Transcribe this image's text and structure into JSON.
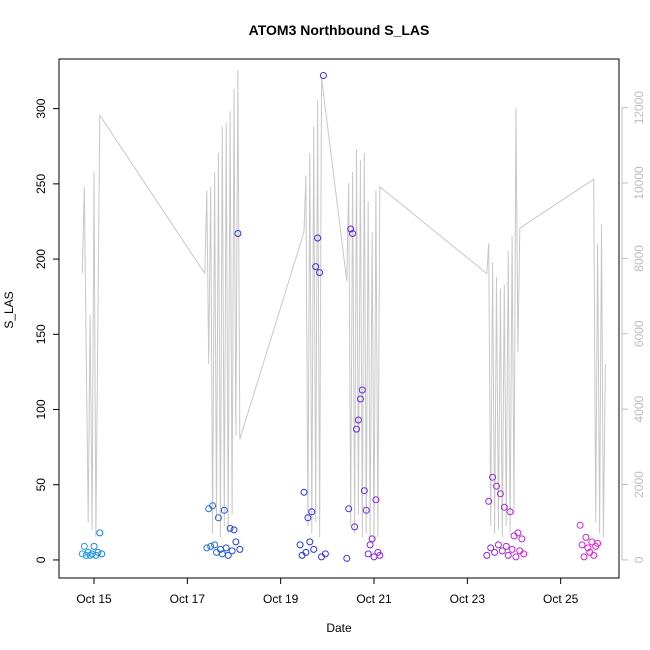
{
  "chart_data": {
    "type": "scatter",
    "title": "ATOM3 Northbound S_LAS",
    "xlabel": "Date",
    "ylabel": "S_LAS",
    "x_ticks": [
      "Oct 15",
      "Oct 17",
      "Oct 19",
      "Oct 21",
      "Oct 23",
      "Oct 25"
    ],
    "y_ticks": [
      "0",
      "50",
      "100",
      "150",
      "200",
      "250",
      "300"
    ],
    "y2_ticks": [
      "0",
      "2000",
      "4000",
      "6000",
      "8000",
      "10000",
      "12000"
    ],
    "xlim": [
      "2013-10-14 06:00",
      "2013-10-26 06:00"
    ],
    "ylim": [
      -12,
      333
    ],
    "y2lim": [
      -480,
      13290
    ],
    "grid": false,
    "legend": "none",
    "colors": {
      "points_start": "#1aa3e8",
      "points_mid": "#2030e0",
      "points_late": "#9020f0",
      "points_end": "#f020d0",
      "line": "#c8c8c8",
      "right_axis": "#bdbdbd"
    },
    "series": [
      {
        "label_axis": "left",
        "style": "points",
        "points": [
          {
            "x": "2013-10-14 18:00",
            "y": 4
          },
          {
            "x": "2013-10-14 19:00",
            "y": 9
          },
          {
            "x": "2013-10-14 20:00",
            "y": 3
          },
          {
            "x": "2013-10-14 21:00",
            "y": 5
          },
          {
            "x": "2013-10-14 22:00",
            "y": 3
          },
          {
            "x": "2013-10-14 23:00",
            "y": 4
          },
          {
            "x": "2013-10-15 00:00",
            "y": 9
          },
          {
            "x": "2013-10-15 01:00",
            "y": 3
          },
          {
            "x": "2013-10-15 02:00",
            "y": 5
          },
          {
            "x": "2013-10-15 03:00",
            "y": 18
          },
          {
            "x": "2013-10-15 04:00",
            "y": 4
          },
          {
            "x": "2013-10-17 10:00",
            "y": 8
          },
          {
            "x": "2013-10-17 11:00",
            "y": 34
          },
          {
            "x": "2013-10-17 12:00",
            "y": 9
          },
          {
            "x": "2013-10-17 13:00",
            "y": 36
          },
          {
            "x": "2013-10-17 14:00",
            "y": 10
          },
          {
            "x": "2013-10-17 15:00",
            "y": 5
          },
          {
            "x": "2013-10-17 16:00",
            "y": 28
          },
          {
            "x": "2013-10-17 17:00",
            "y": 7
          },
          {
            "x": "2013-10-17 18:00",
            "y": 4
          },
          {
            "x": "2013-10-17 19:00",
            "y": 33
          },
          {
            "x": "2013-10-17 20:00",
            "y": 8
          },
          {
            "x": "2013-10-17 21:00",
            "y": 3
          },
          {
            "x": "2013-10-17 22:00",
            "y": 21
          },
          {
            "x": "2013-10-17 23:00",
            "y": 6
          },
          {
            "x": "2013-10-18 00:00",
            "y": 20
          },
          {
            "x": "2013-10-18 01:00",
            "y": 12
          },
          {
            "x": "2013-10-18 02:00",
            "y": 217
          },
          {
            "x": "2013-10-18 03:00",
            "y": 7
          },
          {
            "x": "2013-10-19 10:00",
            "y": 10
          },
          {
            "x": "2013-10-19 11:00",
            "y": 3
          },
          {
            "x": "2013-10-19 12:00",
            "y": 45
          },
          {
            "x": "2013-10-19 13:00",
            "y": 5
          },
          {
            "x": "2013-10-19 14:00",
            "y": 28
          },
          {
            "x": "2013-10-19 15:00",
            "y": 12
          },
          {
            "x": "2013-10-19 16:00",
            "y": 32
          },
          {
            "x": "2013-10-19 17:00",
            "y": 7
          },
          {
            "x": "2013-10-19 18:00",
            "y": 195
          },
          {
            "x": "2013-10-19 19:00",
            "y": 214
          },
          {
            "x": "2013-10-19 20:00",
            "y": 191
          },
          {
            "x": "2013-10-19 21:00",
            "y": 2
          },
          {
            "x": "2013-10-19 22:00",
            "y": 322
          },
          {
            "x": "2013-10-19 23:00",
            "y": 4
          },
          {
            "x": "2013-10-20 10:00",
            "y": 1
          },
          {
            "x": "2013-10-20 11:00",
            "y": 34
          },
          {
            "x": "2013-10-20 12:00",
            "y": 220
          },
          {
            "x": "2013-10-20 13:00",
            "y": 217
          },
          {
            "x": "2013-10-20 14:00",
            "y": 22
          },
          {
            "x": "2013-10-20 15:00",
            "y": 87
          },
          {
            "x": "2013-10-20 16:00",
            "y": 93
          },
          {
            "x": "2013-10-20 17:00",
            "y": 107
          },
          {
            "x": "2013-10-20 18:00",
            "y": 113
          },
          {
            "x": "2013-10-20 19:00",
            "y": 46
          },
          {
            "x": "2013-10-20 20:00",
            "y": 33
          },
          {
            "x": "2013-10-20 21:00",
            "y": 4
          },
          {
            "x": "2013-10-20 22:00",
            "y": 10
          },
          {
            "x": "2013-10-20 23:00",
            "y": 14
          },
          {
            "x": "2013-10-21 00:00",
            "y": 2
          },
          {
            "x": "2013-10-21 01:00",
            "y": 40
          },
          {
            "x": "2013-10-21 02:00",
            "y": 5
          },
          {
            "x": "2013-10-21 03:00",
            "y": 3
          },
          {
            "x": "2013-10-23 10:00",
            "y": 3
          },
          {
            "x": "2013-10-23 11:00",
            "y": 39
          },
          {
            "x": "2013-10-23 12:00",
            "y": 8
          },
          {
            "x": "2013-10-23 13:00",
            "y": 55
          },
          {
            "x": "2013-10-23 14:00",
            "y": 5
          },
          {
            "x": "2013-10-23 15:00",
            "y": 49
          },
          {
            "x": "2013-10-23 16:00",
            "y": 10
          },
          {
            "x": "2013-10-23 17:00",
            "y": 44
          },
          {
            "x": "2013-10-23 18:00",
            "y": 6
          },
          {
            "x": "2013-10-23 19:00",
            "y": 35
          },
          {
            "x": "2013-10-23 20:00",
            "y": 9
          },
          {
            "x": "2013-10-23 21:00",
            "y": 3
          },
          {
            "x": "2013-10-23 22:00",
            "y": 32
          },
          {
            "x": "2013-10-23 23:00",
            "y": 7
          },
          {
            "x": "2013-10-24 00:00",
            "y": 16
          },
          {
            "x": "2013-10-24 01:00",
            "y": 2
          },
          {
            "x": "2013-10-24 02:00",
            "y": 18
          },
          {
            "x": "2013-10-24 03:00",
            "y": 6
          },
          {
            "x": "2013-10-24 04:00",
            "y": 14
          },
          {
            "x": "2013-10-24 05:00",
            "y": 4
          },
          {
            "x": "2013-10-25 10:00",
            "y": 23
          },
          {
            "x": "2013-10-25 11:00",
            "y": 10
          },
          {
            "x": "2013-10-25 12:00",
            "y": 2
          },
          {
            "x": "2013-10-25 13:00",
            "y": 15
          },
          {
            "x": "2013-10-25 14:00",
            "y": 8
          },
          {
            "x": "2013-10-25 15:00",
            "y": 5
          },
          {
            "x": "2013-10-25 16:00",
            "y": 12
          },
          {
            "x": "2013-10-25 17:00",
            "y": 3
          },
          {
            "x": "2013-10-25 18:00",
            "y": 9
          },
          {
            "x": "2013-10-25 19:00",
            "y": 11
          }
        ]
      },
      {
        "label_axis": "right",
        "style": "line",
        "points": [
          {
            "x": "2013-10-14 18:00",
            "y": 7600
          },
          {
            "x": "2013-10-14 19:00",
            "y": 9900
          },
          {
            "x": "2013-10-14 21:00",
            "y": 1000
          },
          {
            "x": "2013-10-14 22:00",
            "y": 6500
          },
          {
            "x": "2013-10-14 23:00",
            "y": 800
          },
          {
            "x": "2013-10-15 00:00",
            "y": 10300
          },
          {
            "x": "2013-10-15 01:00",
            "y": 600
          },
          {
            "x": "2013-10-15 03:00",
            "y": 11800
          },
          {
            "x": "2013-10-17 09:00",
            "y": 7600
          },
          {
            "x": "2013-10-17 10:00",
            "y": 9800
          },
          {
            "x": "2013-10-17 11:00",
            "y": 5200
          },
          {
            "x": "2013-10-17 12:00",
            "y": 9900
          },
          {
            "x": "2013-10-17 13:00",
            "y": 700
          },
          {
            "x": "2013-10-17 14:00",
            "y": 10300
          },
          {
            "x": "2013-10-17 15:00",
            "y": 1100
          },
          {
            "x": "2013-10-17 16:00",
            "y": 10800
          },
          {
            "x": "2013-10-17 17:00",
            "y": 600
          },
          {
            "x": "2013-10-17 18:00",
            "y": 11500
          },
          {
            "x": "2013-10-17 19:00",
            "y": 900
          },
          {
            "x": "2013-10-17 20:00",
            "y": 11600
          },
          {
            "x": "2013-10-17 21:00",
            "y": 700
          },
          {
            "x": "2013-10-17 22:00",
            "y": 11900
          },
          {
            "x": "2013-10-17 23:00",
            "y": 1200
          },
          {
            "x": "2013-10-18 00:00",
            "y": 12500
          },
          {
            "x": "2013-10-18 01:00",
            "y": 3300
          },
          {
            "x": "2013-10-18 02:00",
            "y": 13000
          },
          {
            "x": "2013-10-18 03:00",
            "y": 3200
          },
          {
            "x": "2013-10-19 12:00",
            "y": 8700
          },
          {
            "x": "2013-10-19 13:00",
            "y": 10200
          },
          {
            "x": "2013-10-19 14:00",
            "y": 900
          },
          {
            "x": "2013-10-19 15:00",
            "y": 10800
          },
          {
            "x": "2013-10-19 16:00",
            "y": 700
          },
          {
            "x": "2013-10-19 17:00",
            "y": 11500
          },
          {
            "x": "2013-10-19 18:00",
            "y": 1000
          },
          {
            "x": "2013-10-19 19:00",
            "y": 12200
          },
          {
            "x": "2013-10-19 20:00",
            "y": 600
          },
          {
            "x": "2013-10-19 21:00",
            "y": 12800
          },
          {
            "x": "2013-10-20 10:00",
            "y": 7400
          },
          {
            "x": "2013-10-20 11:00",
            "y": 10000
          },
          {
            "x": "2013-10-20 12:00",
            "y": 900
          },
          {
            "x": "2013-10-20 13:00",
            "y": 10300
          },
          {
            "x": "2013-10-20 14:00",
            "y": 700
          },
          {
            "x": "2013-10-20 15:00",
            "y": 10900
          },
          {
            "x": "2013-10-20 16:00",
            "y": 1200
          },
          {
            "x": "2013-10-20 17:00",
            "y": 10600
          },
          {
            "x": "2013-10-20 18:00",
            "y": 600
          },
          {
            "x": "2013-10-20 19:00",
            "y": 10800
          },
          {
            "x": "2013-10-20 20:00",
            "y": 700
          },
          {
            "x": "2013-10-20 21:00",
            "y": 9500
          },
          {
            "x": "2013-10-20 22:00",
            "y": 600
          },
          {
            "x": "2013-10-20 23:00",
            "y": 8700
          },
          {
            "x": "2013-10-21 00:00",
            "y": 500
          },
          {
            "x": "2013-10-21 01:00",
            "y": 9800
          },
          {
            "x": "2013-10-21 02:00",
            "y": 600
          },
          {
            "x": "2013-10-21 03:00",
            "y": 9900
          },
          {
            "x": "2013-10-23 10:00",
            "y": 7600
          },
          {
            "x": "2013-10-23 11:00",
            "y": 8400
          },
          {
            "x": "2013-10-23 12:00",
            "y": 900
          },
          {
            "x": "2013-10-23 13:00",
            "y": 7900
          },
          {
            "x": "2013-10-23 14:00",
            "y": 700
          },
          {
            "x": "2013-10-23 15:00",
            "y": 7500
          },
          {
            "x": "2013-10-23 16:00",
            "y": 800
          },
          {
            "x": "2013-10-23 17:00",
            "y": 7200
          },
          {
            "x": "2013-10-23 18:00",
            "y": 600
          },
          {
            "x": "2013-10-23 19:00",
            "y": 7300
          },
          {
            "x": "2013-10-23 20:00",
            "y": 900
          },
          {
            "x": "2013-10-23 21:00",
            "y": 8200
          },
          {
            "x": "2013-10-23 22:00",
            "y": 700
          },
          {
            "x": "2013-10-23 23:00",
            "y": 8600
          },
          {
            "x": "2013-10-24 00:00",
            "y": 1200
          },
          {
            "x": "2013-10-24 01:00",
            "y": 12000
          },
          {
            "x": "2013-10-24 02:00",
            "y": 5500
          },
          {
            "x": "2013-10-24 03:00",
            "y": 8800
          },
          {
            "x": "2013-10-25 17:00",
            "y": 10100
          },
          {
            "x": "2013-10-25 18:00",
            "y": 1000
          },
          {
            "x": "2013-10-25 19:00",
            "y": 8400
          },
          {
            "x": "2013-10-25 20:00",
            "y": 700
          },
          {
            "x": "2013-10-25 21:00",
            "y": 8900
          },
          {
            "x": "2013-10-25 22:00",
            "y": 600
          },
          {
            "x": "2013-10-25 23:00",
            "y": 5200
          }
        ]
      }
    ]
  }
}
